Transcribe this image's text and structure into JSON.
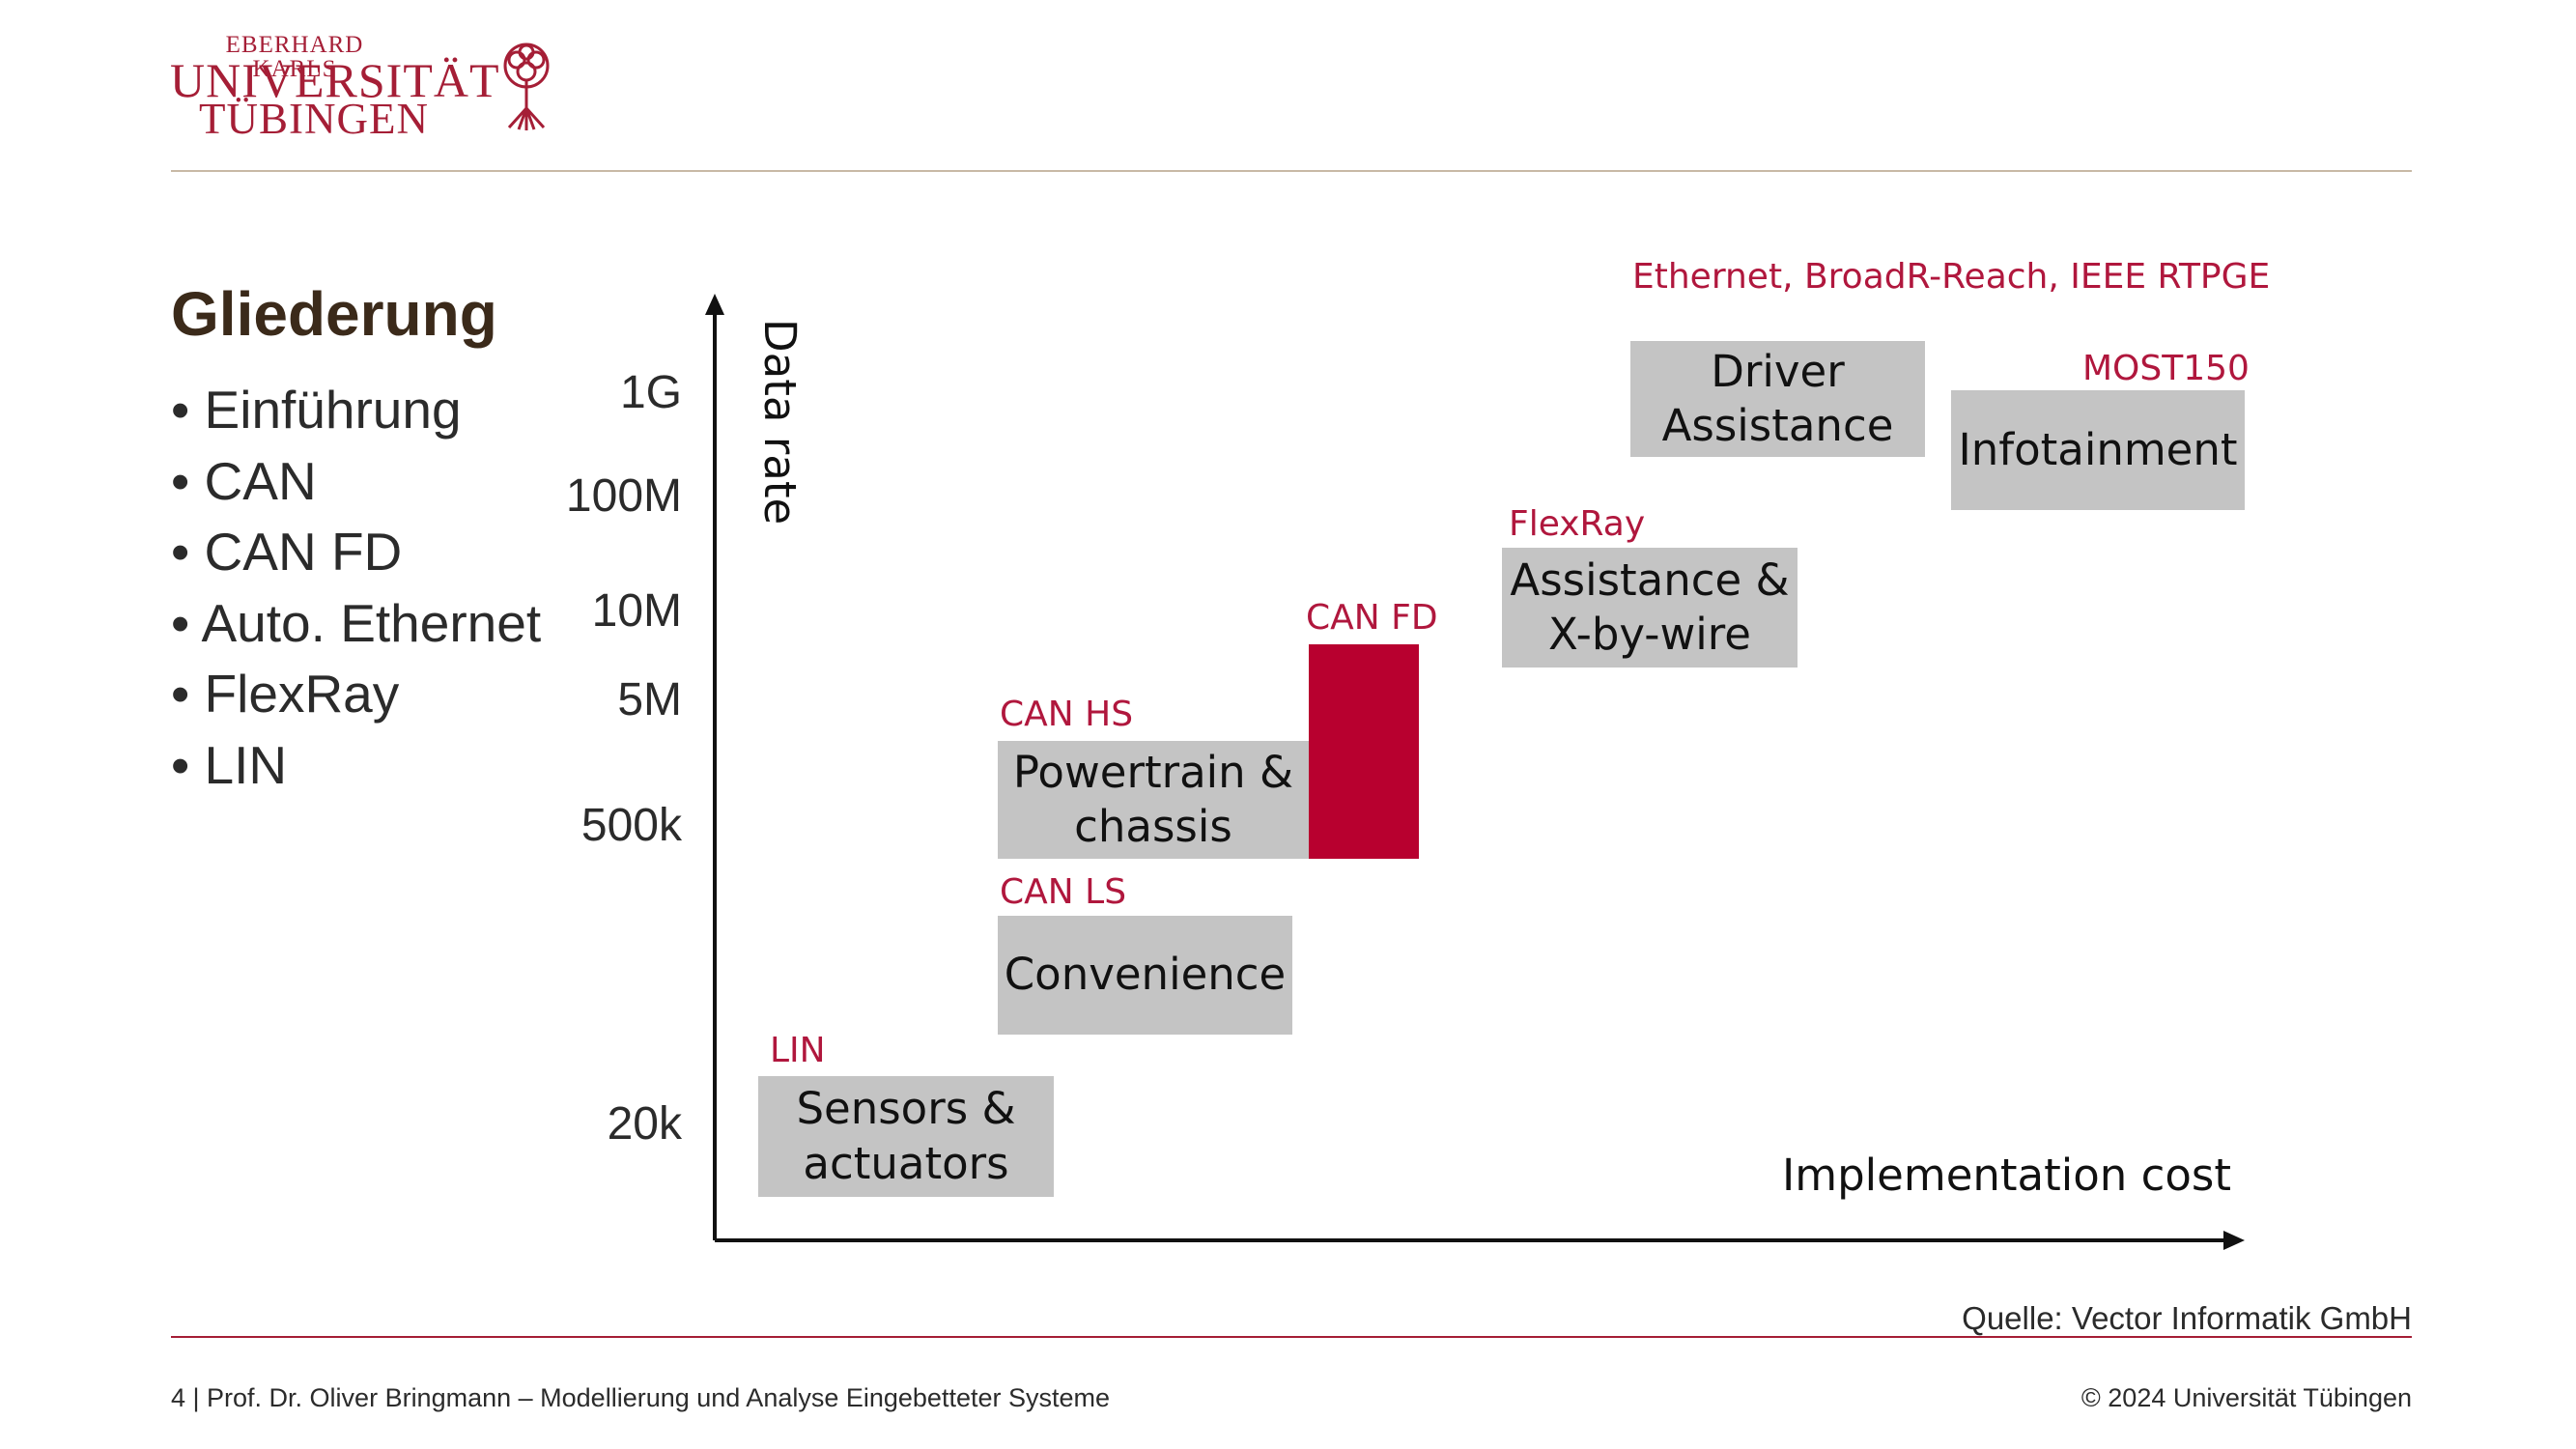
{
  "logo": {
    "line1": "EBERHARD KARLS",
    "line2": "UNIVERSITÄT",
    "line3": "TÜBINGEN",
    "tree_icon": "tree-emblem-icon",
    "color": "#a51e36"
  },
  "slide": {
    "heading": "Gliederung",
    "outline": [
      "• Einführung",
      "• CAN",
      "• CAN FD",
      "• Auto. Ethernet",
      "• FlexRay",
      "• LIN"
    ]
  },
  "diagram": {
    "y_axis_label": "Data rate",
    "x_axis_label": "Implementation cost",
    "y_ticks": [
      "1G",
      "100M",
      "10M",
      "5M",
      "500k",
      "20k"
    ],
    "networks": {
      "ethernet": "Ethernet, BroadR-Reach, IEEE RTPGE",
      "most": "MOST150",
      "flexray": "FlexRay",
      "canfd": "CAN FD",
      "canhs": "CAN HS",
      "canls": "CAN LS",
      "lin": "LIN"
    },
    "blocks": {
      "driver_assistance": "Driver\nAssistance",
      "infotainment": "Infotainment",
      "assistance_xbywire": "Assistance &\nX-by-wire",
      "powertrain": "Powertrain &\nchassis",
      "convenience": "Convenience",
      "sensors": "Sensors &\nactuators"
    },
    "colors": {
      "block_fill": "#c4c4c4",
      "network_label": "#b0173d",
      "canfd_bar": "#b8002f"
    }
  },
  "source": "Quelle: Vector Informatik GmbH",
  "footer": {
    "left": "4 | Prof. Dr. Oliver Bringmann – Modellierung und Analyse Eingebetteter Systeme",
    "right": "© 2024 Universität Tübingen"
  }
}
